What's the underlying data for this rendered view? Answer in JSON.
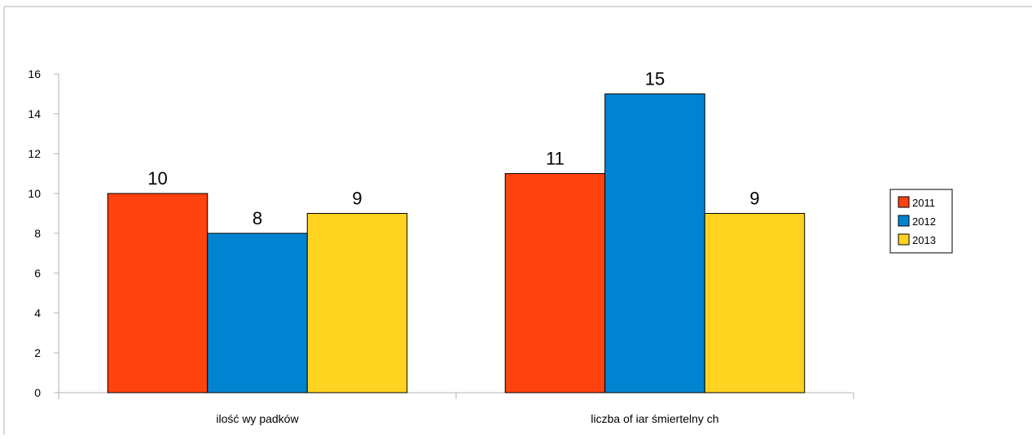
{
  "chart_data": {
    "type": "bar",
    "categories": [
      "ilość wy padków",
      "liczba of iar śmiertelny ch"
    ],
    "series": [
      {
        "name": "2011",
        "values": [
          10,
          11
        ],
        "color": "#ff420e"
      },
      {
        "name": "2012",
        "values": [
          8,
          15
        ],
        "color": "#0084d1"
      },
      {
        "name": "2013",
        "values": [
          9,
          9
        ],
        "color": "#ffd320"
      }
    ],
    "yticks": [
      "0",
      "2",
      "4",
      "6",
      "8",
      "10",
      "12",
      "14",
      "16"
    ],
    "ylim": [
      0,
      16
    ],
    "data_labels": true,
    "grid": false,
    "legend_position": "right",
    "title": "",
    "xlabel": "",
    "ylabel": ""
  }
}
